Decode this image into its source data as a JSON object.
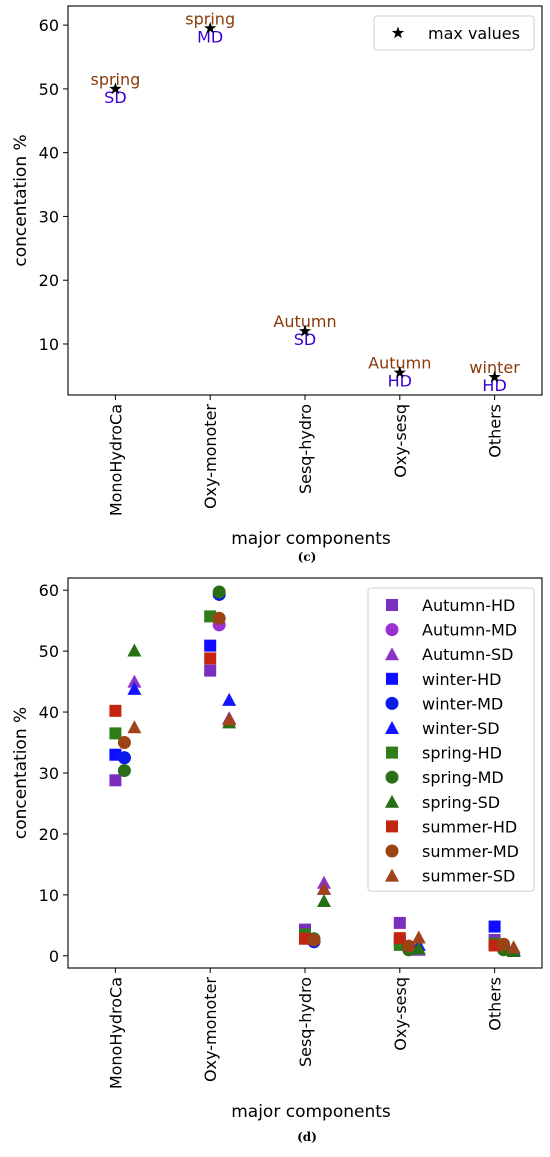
{
  "chart_data": [
    {
      "panel_label": "(c)",
      "type": "scatter",
      "xlabel": "major components",
      "ylabel": "concentation %",
      "categories": [
        "MonoHydroCa",
        "Oxy-monoter",
        "Sesq-hydro",
        "Oxy-sesq",
        "Others"
      ],
      "ylim": [
        2,
        63
      ],
      "yticks": [
        10,
        20,
        30,
        40,
        50,
        60
      ],
      "legend": {
        "label": "max values",
        "marker": "star",
        "position": "top-right"
      },
      "series": [
        {
          "name": "max values",
          "marker": "star",
          "color": "#000000",
          "values": [
            50.0,
            59.5,
            12.0,
            5.5,
            4.8
          ],
          "season_labels": [
            "spring",
            "spring",
            "Autumn",
            "Autumn",
            "winter"
          ],
          "distance_labels": [
            "SD",
            "MD",
            "SD",
            "HD",
            "HD"
          ]
        }
      ]
    },
    {
      "panel_label": "(d)",
      "type": "scatter",
      "xlabel": "major components",
      "ylabel": "concentation %",
      "categories": [
        "MonoHydroCa",
        "Oxy-monoter",
        "Sesq-hydro",
        "Oxy-sesq",
        "Others"
      ],
      "ylim": [
        -2,
        62
      ],
      "yticks": [
        0,
        10,
        20,
        30,
        40,
        50,
        60
      ],
      "legend_position": "top-right",
      "series": [
        {
          "name": "Autumn-HD",
          "marker": "square",
          "color": "#7b2fbe",
          "values": [
            28.8,
            46.8,
            4.3,
            5.4,
            2.6
          ]
        },
        {
          "name": "Autumn-MD",
          "marker": "circle",
          "color": "#9b30d0",
          "values": [
            32.5,
            54.3,
            2.4,
            1.0,
            1.3
          ]
        },
        {
          "name": "Autumn-SD",
          "marker": "triangle",
          "color": "#8a35c8",
          "values": [
            45.0,
            39.0,
            12.0,
            1.0,
            1.0
          ]
        },
        {
          "name": "winter-HD",
          "marker": "square",
          "color": "#0d0dff",
          "values": [
            33.0,
            50.9,
            3.0,
            2.4,
            4.8
          ]
        },
        {
          "name": "winter-MD",
          "marker": "circle",
          "color": "#0a1ae8",
          "values": [
            32.5,
            59.3,
            2.3,
            1.2,
            1.5
          ]
        },
        {
          "name": "winter-SD",
          "marker": "triangle",
          "color": "#1414ff",
          "values": [
            43.8,
            42.0,
            11.0,
            1.8,
            1.0
          ]
        },
        {
          "name": "spring-HD",
          "marker": "square",
          "color": "#2e7d18",
          "values": [
            36.5,
            55.7,
            3.5,
            1.8,
            2.0
          ]
        },
        {
          "name": "spring-MD",
          "marker": "circle",
          "color": "#2a6e16",
          "values": [
            30.4,
            59.7,
            2.8,
            1.0,
            1.0
          ]
        },
        {
          "name": "spring-SD",
          "marker": "triangle",
          "color": "#276f14",
          "values": [
            50.1,
            38.3,
            9.0,
            1.2,
            0.8
          ]
        },
        {
          "name": "summer-HD",
          "marker": "square",
          "color": "#c42510",
          "values": [
            40.2,
            48.8,
            2.8,
            2.9,
            1.7
          ]
        },
        {
          "name": "summer-MD",
          "marker": "circle",
          "color": "#9c4314",
          "values": [
            35.0,
            55.4,
            2.6,
            1.6,
            1.9
          ]
        },
        {
          "name": "summer-SD",
          "marker": "triangle",
          "color": "#a0421a",
          "values": [
            37.5,
            38.8,
            11.0,
            3.0,
            1.4
          ]
        }
      ]
    }
  ]
}
